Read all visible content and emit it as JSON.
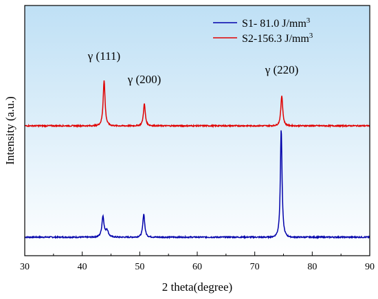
{
  "chart_data": {
    "type": "line",
    "xlabel": "2 theta(degree)",
    "ylabel": "Intensity (a.u.)",
    "xlim": [
      30,
      90
    ],
    "xticks": [
      30,
      40,
      50,
      60,
      70,
      80,
      90
    ],
    "y_tick_labels": "none",
    "grid": false,
    "background_gradient": [
      "#bfe0f5",
      "#ffffff"
    ],
    "legend": {
      "placement": "top-right",
      "entries": [
        {
          "label": "S1-  81.0 J/mm",
          "superscript": "3",
          "color": "#0000aa"
        },
        {
          "label": "S2-156.3 J/mm",
          "superscript": "3",
          "color": "#e00000"
        }
      ]
    },
    "series": [
      {
        "name": "S1-  81.0 J/mm3",
        "color": "#0000aa",
        "baseline": 0.0,
        "peaks": [
          {
            "x": 43.6,
            "height": 0.15,
            "width": 0.28
          },
          {
            "x": 44.3,
            "height": 0.05,
            "width": 0.35
          },
          {
            "x": 50.7,
            "height": 0.17,
            "width": 0.25
          },
          {
            "x": 74.6,
            "height": 0.79,
            "width": 0.22
          }
        ]
      },
      {
        "name": "S2-156.3 J/mm3",
        "color": "#e00000",
        "baseline": 0.81,
        "peaks": [
          {
            "x": 43.8,
            "height": 0.33,
            "width": 0.25
          },
          {
            "x": 50.8,
            "height": 0.16,
            "width": 0.25
          },
          {
            "x": 74.7,
            "height": 0.22,
            "width": 0.25
          }
        ]
      }
    ],
    "annotations": [
      {
        "text": "γ (111)",
        "x": 43.8,
        "level": 1.29
      },
      {
        "text": "γ (200)",
        "x": 50.8,
        "level": 1.12
      },
      {
        "text": "γ (220)",
        "x": 74.7,
        "level": 1.19
      }
    ]
  }
}
